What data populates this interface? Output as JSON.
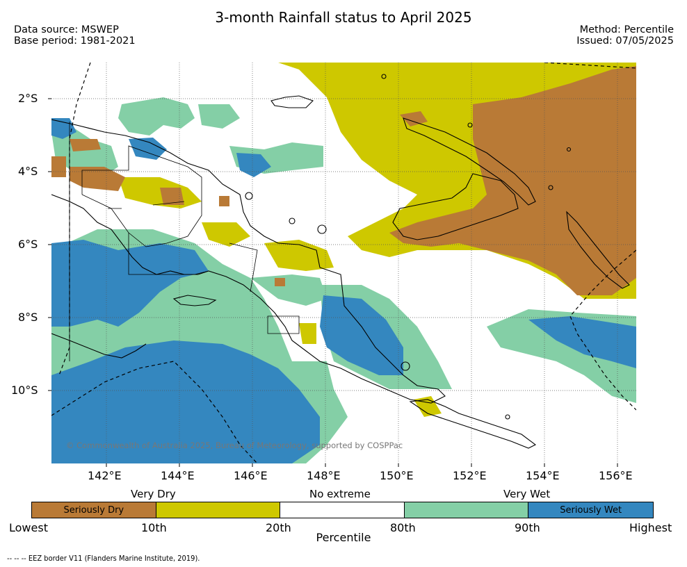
{
  "header": {
    "title": "3-month Rainfall status to April 2025",
    "data_source": "Data source: MSWEP",
    "base_period": "Base period: 1981-2021",
    "method": "Method: Percentile",
    "issued": "Issued: 07/05/2025"
  },
  "map": {
    "lon_range": [
      140.5,
      156.5
    ],
    "lat_range": [
      -1.0,
      -12.0
    ],
    "lat_ticks": [
      {
        "value": -2,
        "label": "2°S"
      },
      {
        "value": -4,
        "label": "4°S"
      },
      {
        "value": -6,
        "label": "6°S"
      },
      {
        "value": -8,
        "label": "8°S"
      },
      {
        "value": -10,
        "label": "10°S"
      }
    ],
    "lon_ticks": [
      {
        "value": 142,
        "label": "142°E"
      },
      {
        "value": 144,
        "label": "144°E"
      },
      {
        "value": 146,
        "label": "146°E"
      },
      {
        "value": 148,
        "label": "148°E"
      },
      {
        "value": 150,
        "label": "150°E"
      },
      {
        "value": 152,
        "label": "152°E"
      },
      {
        "value": 154,
        "label": "154°E"
      },
      {
        "value": 156,
        "label": "156°E"
      }
    ],
    "copyright": "© Commonwealth of Australia 2025, Bureau of Meteorology, supported by COSPPac",
    "colors": {
      "seriously_dry": "#b97a36",
      "very_dry": "#cec800",
      "no_extreme": "#ffffff",
      "very_wet": "#84cfa6",
      "seriously_wet": "#3487bf"
    }
  },
  "legend": {
    "groups": {
      "very_dry": "Very Dry",
      "no_extreme": "No extreme",
      "very_wet": "Very Wet"
    },
    "segments": [
      {
        "label": "Seriously Dry",
        "color": "#b97a36"
      },
      {
        "label": "",
        "color": "#cec800"
      },
      {
        "label": "",
        "color": "#ffffff"
      },
      {
        "label": "",
        "color": "#84cfa6"
      },
      {
        "label": "Seriously Wet",
        "color": "#3487bf"
      }
    ],
    "bounds": [
      "Lowest",
      "10th",
      "20th",
      "80th",
      "90th",
      "Highest"
    ],
    "axis_label": "Percentile"
  },
  "footer": {
    "eez_note": "--  --  -- EEZ border V11 (Flanders Marine Institute, 2019)."
  }
}
